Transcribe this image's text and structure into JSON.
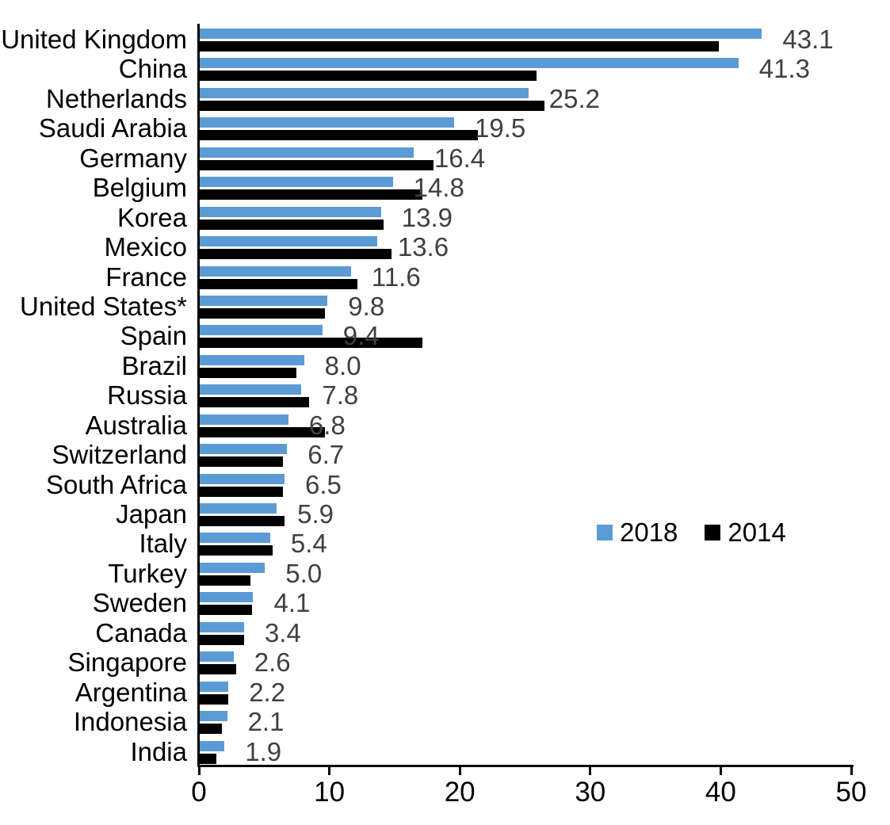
{
  "chart_data": {
    "type": "bar",
    "orientation": "horizontal",
    "title": "",
    "categories": [
      "United Kingdom",
      "China",
      "Netherlands",
      "Saudi Arabia",
      "Germany",
      "Belgium",
      "Korea",
      "Mexico",
      "France",
      "United States*",
      "Spain",
      "Brazil",
      "Russia",
      "Australia",
      "Switzerland",
      "South Africa",
      "Japan",
      "Italy",
      "Turkey",
      "Sweden",
      "Canada",
      "Singapore",
      "Argentina",
      "Indonesia",
      "India"
    ],
    "series": [
      {
        "name": "2018",
        "color": "#5B9BD5",
        "values": [
          43.1,
          41.3,
          25.2,
          19.5,
          16.4,
          14.8,
          13.9,
          13.6,
          11.6,
          9.8,
          9.4,
          8.0,
          7.8,
          6.8,
          6.7,
          6.5,
          5.9,
          5.4,
          5.0,
          4.1,
          3.4,
          2.6,
          2.2,
          2.1,
          1.9
        ]
      },
      {
        "name": "2014",
        "color": "#000000",
        "values": [
          39.8,
          25.8,
          26.4,
          21.3,
          17.9,
          17.1,
          14.1,
          14.7,
          12.1,
          9.6,
          17.1,
          7.4,
          8.4,
          9.6,
          6.4,
          6.4,
          6.5,
          5.6,
          3.9,
          4.0,
          3.4,
          2.8,
          2.2,
          1.7,
          1.3
        ]
      }
    ],
    "data_labels": [
      "43.1",
      "41.3",
      "25.2",
      "19.5",
      "16.4",
      "14.8",
      "13.9",
      "13.6",
      "11.6",
      "9.8",
      "9.4",
      "8.0",
      "7.8",
      "6.8",
      "6.7",
      "6.5",
      "5.9",
      "5.4",
      "5.0",
      "4.1",
      "3.4",
      "2.6",
      "2.2",
      "2.1",
      "1.9"
    ],
    "data_label_color": "#404040",
    "xlabel": "",
    "ylabel": "",
    "xlim": [
      0,
      50
    ],
    "x_ticks": [
      "0",
      "10",
      "20",
      "30",
      "40",
      "50"
    ],
    "grid": "off",
    "legend": {
      "position": "middle-right",
      "entries": [
        "2018",
        "2014"
      ]
    },
    "axis_color": "#000000"
  }
}
